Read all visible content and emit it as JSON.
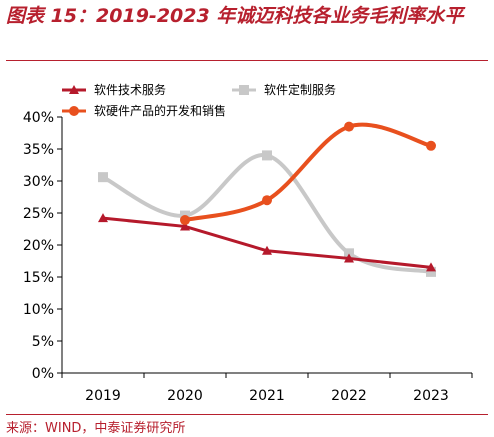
{
  "header": {
    "title": "图表 15：2019-2023 年诚迈科技各业务毛利率水平"
  },
  "footer": {
    "source": "来源：WIND，中泰证券研究所"
  },
  "chart_data": {
    "type": "line",
    "title": "",
    "xlabel": "",
    "ylabel": "",
    "categories": [
      "2019",
      "2020",
      "2021",
      "2022",
      "2023"
    ],
    "ylim": [
      0,
      40
    ],
    "yticks": [
      "0%",
      "5%",
      "10%",
      "15%",
      "20%",
      "25%",
      "30%",
      "35%",
      "40%"
    ],
    "grid": false,
    "legend_position": "top-left",
    "series": [
      {
        "name": "软件技术服务",
        "values": [
          24.2,
          22.9,
          19.1,
          17.9,
          16.5
        ],
        "color": "#b5192b",
        "marker": "triangle",
        "smooth": false
      },
      {
        "name": "软件定制服务",
        "values": [
          30.6,
          24.6,
          34.0,
          18.7,
          15.8
        ],
        "color": "#c8c8c8",
        "marker": "square",
        "smooth": true
      },
      {
        "name": "软硬件产品的开发和销售",
        "values": [
          null,
          23.9,
          27.0,
          38.5,
          35.5
        ],
        "color": "#e8501e",
        "marker": "circle",
        "smooth": true
      }
    ]
  }
}
